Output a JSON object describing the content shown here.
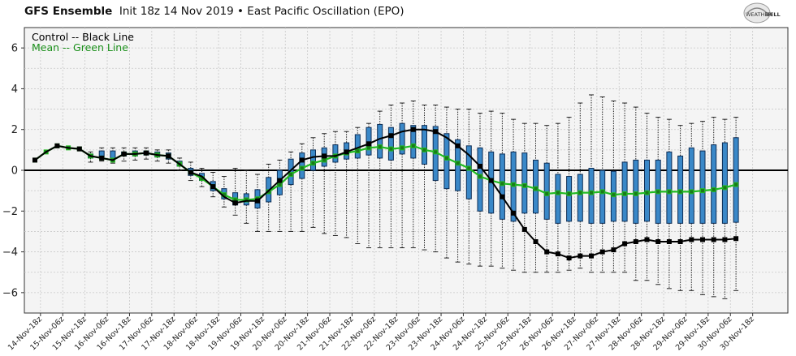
{
  "header": {
    "title": "GFS Ensemble",
    "subtitle": "Init 18z 14 Nov 2019 • East Pacific Oscillation (EPO)"
  },
  "logo": {
    "text_top": "WEATHER",
    "text_bottom": "BELL"
  },
  "legend": {
    "control": "Control -- Black Line",
    "mean": "Mean -- Green Line"
  },
  "colors": {
    "control": "#000000",
    "mean": "#22bb22",
    "mean_marker": "#1a7a1a",
    "box_fill": "#3a88c8",
    "box_edge": "#0d2d55",
    "whisker": "#222222",
    "plot_bg": "#f4f4f4",
    "grid": "#c8c8c8"
  },
  "chart_data": {
    "type": "box",
    "ylim": [
      -7,
      7
    ],
    "yticks": [
      -6,
      -4,
      -2,
      0,
      2,
      4,
      6
    ],
    "grid": true,
    "legend_position": "top-left",
    "xlabels": [
      "14-Nov-18z",
      "15-Nov-06z",
      "15-Nov-18z",
      "16-Nov-06z",
      "16-Nov-18z",
      "17-Nov-06z",
      "17-Nov-18z",
      "18-Nov-06z",
      "18-Nov-18z",
      "19-Nov-06z",
      "19-Nov-18z",
      "20-Nov-06z",
      "20-Nov-18z",
      "21-Nov-06z",
      "21-Nov-18z",
      "22-Nov-06z",
      "22-Nov-18z",
      "23-Nov-06z",
      "23-Nov-18z",
      "24-Nov-06z",
      "24-Nov-18z",
      "25-Nov-06z",
      "25-Nov-18z",
      "26-Nov-06z",
      "26-Nov-18z",
      "27-Nov-06z",
      "27-Nov-18z",
      "28-Nov-06z",
      "28-Nov-18z",
      "29-Nov-06z",
      "29-Nov-18z",
      "30-Nov-06z",
      "30-Nov-18z"
    ],
    "control": [
      0.5,
      0.9,
      1.2,
      1.1,
      1.05,
      0.7,
      0.6,
      0.5,
      0.8,
      0.8,
      0.85,
      0.75,
      0.7,
      0.3,
      -0.1,
      -0.3,
      -0.8,
      -1.3,
      -1.6,
      -1.5,
      -1.5,
      -1.0,
      -0.5,
      0.0,
      0.5,
      0.65,
      0.7,
      0.7,
      0.9,
      1.1,
      1.3,
      1.55,
      1.7,
      1.9,
      2.0,
      2.0,
      1.9,
      1.6,
      1.2,
      0.75,
      0.2,
      -0.5,
      -1.3,
      -2.1,
      -2.9,
      -3.5,
      -4.0,
      -4.1,
      -4.3,
      -4.2,
      -4.2,
      -4.0,
      -3.9,
      -3.6,
      -3.5,
      -3.4,
      -3.5,
      -3.5,
      -3.5,
      -3.4,
      -3.4,
      -3.4,
      -3.4,
      -3.35
    ],
    "mean": [
      0.5,
      0.9,
      1.2,
      1.1,
      1.05,
      0.7,
      0.6,
      0.5,
      0.8,
      0.8,
      0.85,
      0.75,
      0.7,
      0.3,
      -0.1,
      -0.4,
      -0.8,
      -1.2,
      -1.45,
      -1.45,
      -1.4,
      -1.05,
      -0.7,
      -0.2,
      0.1,
      0.35,
      0.5,
      0.7,
      0.85,
      0.95,
      1.1,
      1.15,
      1.05,
      1.1,
      1.2,
      1.0,
      0.9,
      0.6,
      0.35,
      0.1,
      -0.3,
      -0.5,
      -0.65,
      -0.7,
      -0.75,
      -0.9,
      -1.15,
      -1.1,
      -1.15,
      -1.1,
      -1.1,
      -1.05,
      -1.2,
      -1.15,
      -1.15,
      -1.1,
      -1.05,
      -1.05,
      -1.05,
      -1.05,
      -1.0,
      -0.95,
      -0.85,
      -0.7
    ],
    "box_q1": [
      null,
      null,
      null,
      null,
      null,
      0.6,
      0.65,
      0.55,
      0.7,
      0.7,
      0.75,
      0.65,
      0.55,
      0.2,
      -0.25,
      -0.5,
      -1.0,
      -1.4,
      -1.7,
      -1.7,
      -1.85,
      -1.55,
      -1.2,
      -0.7,
      -0.4,
      0.0,
      0.2,
      0.4,
      0.55,
      0.6,
      0.75,
      0.6,
      0.5,
      0.8,
      0.6,
      0.3,
      -0.5,
      -0.9,
      -1.0,
      -1.4,
      -2.0,
      -2.1,
      -2.4,
      -2.5,
      -2.1,
      -2.1,
      -2.4,
      -2.6,
      -2.5,
      -2.5,
      -2.6,
      -2.6,
      -2.5,
      -2.5,
      -2.6,
      -2.5,
      -2.6,
      -2.6,
      -2.6,
      -2.6,
      -2.6,
      -2.6,
      -2.6,
      -2.55
    ],
    "box_q3": [
      null,
      null,
      null,
      null,
      null,
      0.8,
      0.95,
      0.95,
      0.9,
      0.95,
      0.95,
      0.9,
      0.85,
      0.45,
      0.1,
      -0.15,
      -0.55,
      -0.9,
      -1.1,
      -1.15,
      -0.95,
      -0.35,
      0.0,
      0.55,
      0.85,
      1.0,
      1.1,
      1.25,
      1.35,
      1.75,
      2.1,
      2.25,
      2.1,
      2.3,
      2.2,
      2.2,
      2.15,
      1.8,
      1.5,
      1.2,
      1.1,
      0.9,
      0.8,
      0.9,
      0.85,
      0.5,
      0.35,
      -0.2,
      -0.3,
      -0.2,
      0.1,
      0.0,
      -0.05,
      0.4,
      0.5,
      0.5,
      0.5,
      0.9,
      0.7,
      1.1,
      0.95,
      1.25,
      1.35,
      1.6
    ],
    "whisker_low": [
      null,
      null,
      null,
      null,
      null,
      0.4,
      0.45,
      0.35,
      0.45,
      0.5,
      0.55,
      0.45,
      0.35,
      0.0,
      -0.5,
      -0.8,
      -1.3,
      -1.8,
      -2.2,
      -2.6,
      -3.0,
      -3.0,
      -3.0,
      -3.0,
      -3.0,
      -2.8,
      -3.1,
      -3.2,
      -3.3,
      -3.6,
      -3.8,
      -3.8,
      -3.8,
      -3.8,
      -3.8,
      -3.9,
      -4.0,
      -4.3,
      -4.5,
      -4.6,
      -4.7,
      -4.7,
      -4.8,
      -4.9,
      -5.0,
      -5.0,
      -5.0,
      -5.0,
      -4.9,
      -4.8,
      -5.0,
      -5.0,
      -5.0,
      -5.0,
      -5.4,
      -5.4,
      -5.6,
      -5.8,
      -5.9,
      -5.9,
      -6.1,
      -6.2,
      -6.3,
      -5.9
    ],
    "whisker_high": [
      null,
      null,
      null,
      null,
      null,
      0.9,
      1.1,
      1.1,
      1.1,
      1.1,
      1.1,
      1.0,
      1.0,
      0.6,
      0.4,
      0.1,
      -0.1,
      -0.3,
      0.1,
      0.0,
      -0.2,
      0.3,
      0.5,
      0.9,
      1.3,
      1.6,
      1.8,
      1.9,
      1.9,
      2.1,
      2.3,
      2.9,
      3.2,
      3.3,
      3.4,
      3.2,
      3.2,
      3.1,
      3.0,
      3.0,
      2.8,
      2.9,
      2.8,
      2.5,
      2.3,
      2.3,
      2.2,
      2.3,
      2.6,
      3.3,
      3.7,
      3.6,
      3.4,
      3.3,
      3.1,
      2.8,
      2.6,
      2.5,
      2.2,
      2.3,
      2.4,
      2.6,
      2.5,
      2.6
    ]
  }
}
